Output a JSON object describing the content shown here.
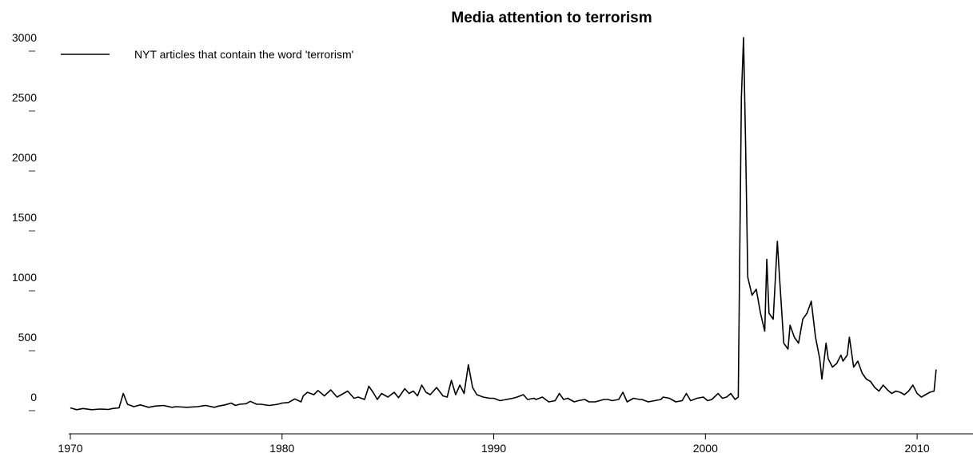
{
  "chart_data": {
    "type": "line",
    "title": "Media attention to terrorism",
    "xlabel": "",
    "ylabel": "",
    "xlim": [
      1970,
      2012.3
    ],
    "ylim": [
      -100,
      3100
    ],
    "x_ticks": [
      1970,
      1980,
      1990,
      2000,
      2010
    ],
    "y_ticks": [
      0,
      500,
      1000,
      1500,
      2000,
      2500,
      3000
    ],
    "grid": false,
    "legend_position": "top-left",
    "line_color": "#000000",
    "series": [
      {
        "name": "NYT articles that contain the word 'terrorism'",
        "points": [
          [
            1970.0,
            10
          ],
          [
            1970.3,
            -5
          ],
          [
            1970.6,
            5
          ],
          [
            1971.0,
            -5
          ],
          [
            1971.4,
            0
          ],
          [
            1971.8,
            -3
          ],
          [
            1972.0,
            5
          ],
          [
            1972.3,
            10
          ],
          [
            1972.5,
            130
          ],
          [
            1972.7,
            40
          ],
          [
            1973.0,
            20
          ],
          [
            1973.3,
            35
          ],
          [
            1973.7,
            15
          ],
          [
            1974.0,
            25
          ],
          [
            1974.4,
            30
          ],
          [
            1974.8,
            15
          ],
          [
            1975.0,
            20
          ],
          [
            1975.5,
            15
          ],
          [
            1976.0,
            20
          ],
          [
            1976.4,
            30
          ],
          [
            1976.8,
            15
          ],
          [
            1977.0,
            25
          ],
          [
            1977.3,
            35
          ],
          [
            1977.6,
            50
          ],
          [
            1977.8,
            30
          ],
          [
            1978.0,
            40
          ],
          [
            1978.3,
            45
          ],
          [
            1978.5,
            65
          ],
          [
            1978.8,
            40
          ],
          [
            1979.0,
            40
          ],
          [
            1979.4,
            30
          ],
          [
            1979.8,
            40
          ],
          [
            1980.0,
            50
          ],
          [
            1980.3,
            55
          ],
          [
            1980.6,
            85
          ],
          [
            1980.9,
            60
          ],
          [
            1981.0,
            110
          ],
          [
            1981.2,
            140
          ],
          [
            1981.5,
            120
          ],
          [
            1981.7,
            155
          ],
          [
            1982.0,
            110
          ],
          [
            1982.3,
            160
          ],
          [
            1982.6,
            100
          ],
          [
            1982.9,
            130
          ],
          [
            1983.1,
            150
          ],
          [
            1983.4,
            90
          ],
          [
            1983.6,
            100
          ],
          [
            1983.9,
            80
          ],
          [
            1984.1,
            190
          ],
          [
            1984.3,
            140
          ],
          [
            1984.5,
            80
          ],
          [
            1984.7,
            130
          ],
          [
            1985.0,
            100
          ],
          [
            1985.3,
            140
          ],
          [
            1985.5,
            95
          ],
          [
            1985.8,
            170
          ],
          [
            1986.0,
            130
          ],
          [
            1986.2,
            150
          ],
          [
            1986.4,
            110
          ],
          [
            1986.6,
            200
          ],
          [
            1986.8,
            140
          ],
          [
            1987.0,
            120
          ],
          [
            1987.3,
            180
          ],
          [
            1987.6,
            110
          ],
          [
            1987.8,
            100
          ],
          [
            1988.0,
            240
          ],
          [
            1988.2,
            120
          ],
          [
            1988.4,
            200
          ],
          [
            1988.6,
            130
          ],
          [
            1988.8,
            370
          ],
          [
            1989.0,
            180
          ],
          [
            1989.2,
            120
          ],
          [
            1989.5,
            100
          ],
          [
            1989.8,
            90
          ],
          [
            1990.0,
            90
          ],
          [
            1990.3,
            70
          ],
          [
            1990.6,
            80
          ],
          [
            1990.9,
            90
          ],
          [
            1991.1,
            100
          ],
          [
            1991.4,
            120
          ],
          [
            1991.6,
            80
          ],
          [
            1991.9,
            90
          ],
          [
            1992.0,
            80
          ],
          [
            1992.3,
            100
          ],
          [
            1992.6,
            60
          ],
          [
            1992.9,
            70
          ],
          [
            1993.1,
            130
          ],
          [
            1993.3,
            80
          ],
          [
            1993.5,
            90
          ],
          [
            1993.8,
            60
          ],
          [
            1994.0,
            70
          ],
          [
            1994.3,
            80
          ],
          [
            1994.5,
            60
          ],
          [
            1994.8,
            60
          ],
          [
            1995.0,
            70
          ],
          [
            1995.2,
            80
          ],
          [
            1995.4,
            80
          ],
          [
            1995.6,
            70
          ],
          [
            1995.9,
            80
          ],
          [
            1996.1,
            140
          ],
          [
            1996.3,
            60
          ],
          [
            1996.6,
            90
          ],
          [
            1996.9,
            80
          ],
          [
            1997.0,
            80
          ],
          [
            1997.3,
            60
          ],
          [
            1997.6,
            70
          ],
          [
            1997.9,
            80
          ],
          [
            1998.0,
            100
          ],
          [
            1998.3,
            90
          ],
          [
            1998.6,
            60
          ],
          [
            1998.9,
            70
          ],
          [
            1999.1,
            130
          ],
          [
            1999.3,
            70
          ],
          [
            1999.6,
            90
          ],
          [
            1999.9,
            100
          ],
          [
            2000.1,
            70
          ],
          [
            2000.3,
            80
          ],
          [
            2000.6,
            130
          ],
          [
            2000.8,
            90
          ],
          [
            2001.0,
            100
          ],
          [
            2001.2,
            130
          ],
          [
            2001.4,
            80
          ],
          [
            2001.55,
            100
          ],
          [
            2001.7,
            2600
          ],
          [
            2001.8,
            3100
          ],
          [
            2001.9,
            2200
          ],
          [
            2002.0,
            1100
          ],
          [
            2002.2,
            950
          ],
          [
            2002.4,
            1000
          ],
          [
            2002.6,
            800
          ],
          [
            2002.8,
            650
          ],
          [
            2002.9,
            1250
          ],
          [
            2003.0,
            800
          ],
          [
            2003.2,
            750
          ],
          [
            2003.4,
            1400
          ],
          [
            2003.5,
            1100
          ],
          [
            2003.7,
            550
          ],
          [
            2003.9,
            500
          ],
          [
            2004.0,
            700
          ],
          [
            2004.2,
            600
          ],
          [
            2004.4,
            550
          ],
          [
            2004.6,
            750
          ],
          [
            2004.8,
            800
          ],
          [
            2004.9,
            850
          ],
          [
            2005.0,
            900
          ],
          [
            2005.2,
            600
          ],
          [
            2005.4,
            420
          ],
          [
            2005.5,
            250
          ],
          [
            2005.7,
            550
          ],
          [
            2005.8,
            420
          ],
          [
            2006.0,
            350
          ],
          [
            2006.2,
            380
          ],
          [
            2006.4,
            450
          ],
          [
            2006.5,
            400
          ],
          [
            2006.7,
            450
          ],
          [
            2006.8,
            600
          ],
          [
            2007.0,
            350
          ],
          [
            2007.2,
            400
          ],
          [
            2007.4,
            300
          ],
          [
            2007.6,
            250
          ],
          [
            2007.8,
            230
          ],
          [
            2008.0,
            180
          ],
          [
            2008.2,
            150
          ],
          [
            2008.4,
            200
          ],
          [
            2008.6,
            160
          ],
          [
            2008.8,
            130
          ],
          [
            2009.0,
            150
          ],
          [
            2009.2,
            140
          ],
          [
            2009.4,
            120
          ],
          [
            2009.6,
            150
          ],
          [
            2009.8,
            200
          ],
          [
            2010.0,
            130
          ],
          [
            2010.2,
            100
          ],
          [
            2010.4,
            120
          ],
          [
            2010.6,
            140
          ],
          [
            2010.8,
            150
          ],
          [
            2010.9,
            330
          ]
        ]
      }
    ]
  }
}
